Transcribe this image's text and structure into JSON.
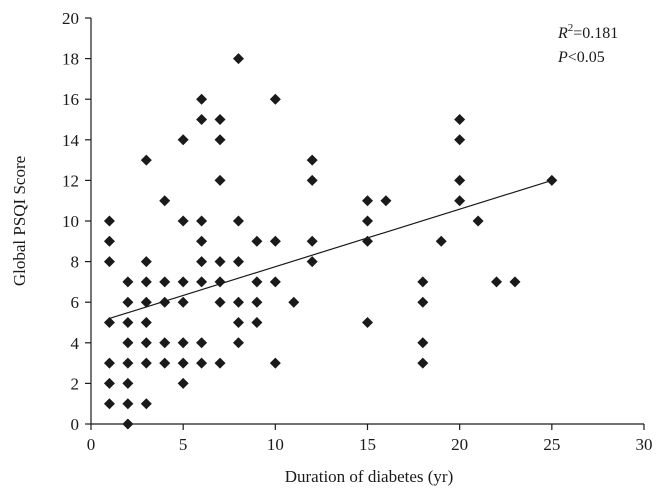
{
  "chart_data": {
    "type": "scatter",
    "xlabel": "Duration of diabetes (yr)",
    "ylabel": "Global PSQI Score",
    "xlim": [
      0,
      30
    ],
    "ylim": [
      0,
      20
    ],
    "xticks": [
      0,
      5,
      10,
      15,
      20,
      25,
      30
    ],
    "yticks": [
      0,
      2,
      4,
      6,
      8,
      10,
      12,
      14,
      16,
      18,
      20
    ],
    "grid": false,
    "marker": "diamond",
    "marker_color": "#1a1a1a",
    "annotations": {
      "r2_symbol": "R",
      "r2_exponent": "2",
      "r2_value": "=0.181",
      "p_symbol": "P",
      "p_value": "<0.05"
    },
    "trendline": {
      "x": [
        1,
        25
      ],
      "y": [
        5.2,
        12
      ]
    },
    "points": [
      [
        1,
        1
      ],
      [
        1,
        2
      ],
      [
        1,
        3
      ],
      [
        1,
        5
      ],
      [
        1,
        8
      ],
      [
        1,
        9
      ],
      [
        1,
        10
      ],
      [
        2,
        0
      ],
      [
        2,
        1
      ],
      [
        2,
        2
      ],
      [
        2,
        3
      ],
      [
        2,
        4
      ],
      [
        2,
        5
      ],
      [
        2,
        6
      ],
      [
        2,
        7
      ],
      [
        3,
        1
      ],
      [
        3,
        3
      ],
      [
        3,
        4
      ],
      [
        3,
        5
      ],
      [
        3,
        6
      ],
      [
        3,
        7
      ],
      [
        3,
        8
      ],
      [
        3,
        13
      ],
      [
        4,
        3
      ],
      [
        4,
        4
      ],
      [
        4,
        6
      ],
      [
        4,
        7
      ],
      [
        4,
        11
      ],
      [
        5,
        2
      ],
      [
        5,
        3
      ],
      [
        5,
        4
      ],
      [
        5,
        6
      ],
      [
        5,
        7
      ],
      [
        5,
        10
      ],
      [
        5,
        14
      ],
      [
        6,
        3
      ],
      [
        6,
        4
      ],
      [
        6,
        7
      ],
      [
        6,
        8
      ],
      [
        6,
        9
      ],
      [
        6,
        10
      ],
      [
        6,
        15
      ],
      [
        6,
        16
      ],
      [
        7,
        3
      ],
      [
        7,
        6
      ],
      [
        7,
        7
      ],
      [
        7,
        8
      ],
      [
        7,
        12
      ],
      [
        7,
        14
      ],
      [
        7,
        15
      ],
      [
        8,
        4
      ],
      [
        8,
        5
      ],
      [
        8,
        6
      ],
      [
        8,
        8
      ],
      [
        8,
        10
      ],
      [
        8,
        18
      ],
      [
        9,
        5
      ],
      [
        9,
        6
      ],
      [
        9,
        7
      ],
      [
        9,
        9
      ],
      [
        10,
        3
      ],
      [
        10,
        7
      ],
      [
        10,
        9
      ],
      [
        10,
        16
      ],
      [
        11,
        6
      ],
      [
        12,
        8
      ],
      [
        12,
        9
      ],
      [
        12,
        12
      ],
      [
        12,
        13
      ],
      [
        15,
        5
      ],
      [
        15,
        9
      ],
      [
        15,
        10
      ],
      [
        15,
        11
      ],
      [
        16,
        11
      ],
      [
        18,
        3
      ],
      [
        18,
        4
      ],
      [
        18,
        6
      ],
      [
        18,
        7
      ],
      [
        19,
        9
      ],
      [
        20,
        11
      ],
      [
        20,
        12
      ],
      [
        20,
        14
      ],
      [
        20,
        15
      ],
      [
        21,
        10
      ],
      [
        22,
        7
      ],
      [
        23,
        7
      ],
      [
        25,
        12
      ]
    ]
  }
}
